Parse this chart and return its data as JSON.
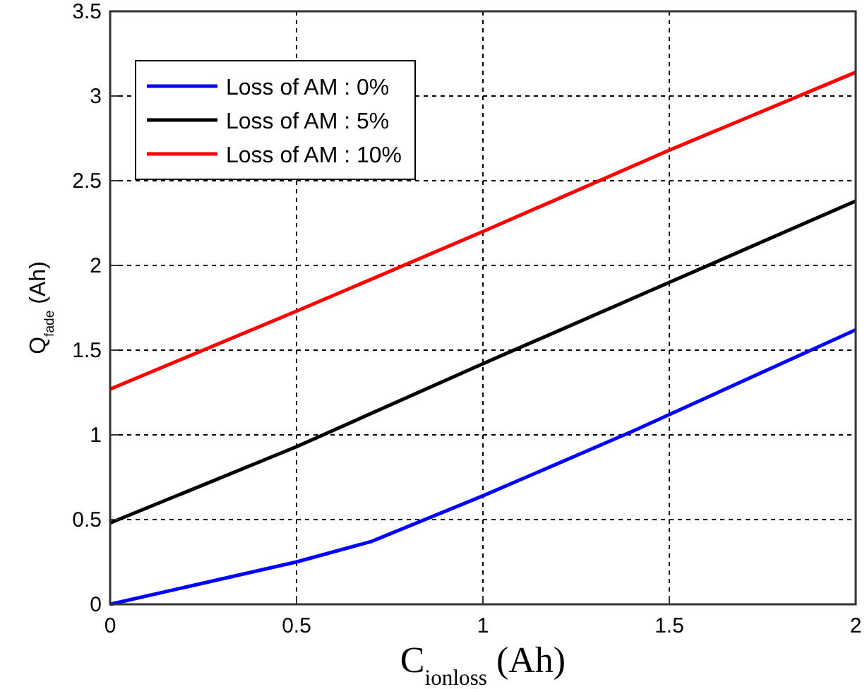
{
  "chart_data": {
    "type": "line",
    "xlabel": "C$_{ionloss}$ (Ah)",
    "ylabel": "Q$_{fade}$ (Ah)",
    "xlim": [
      0,
      2
    ],
    "xticks": [
      0,
      0.5,
      1,
      1.5,
      2
    ],
    "ylim": [
      0,
      3.5
    ],
    "yticks": [
      0,
      0.5,
      1,
      1.5,
      2,
      2.5,
      3,
      3.5
    ],
    "grid": true,
    "legend": "top left",
    "line_style": "solid",
    "series": [
      {
        "name": "Loss of AM : 0%",
        "color": "#0000ff",
        "x": [
          0,
          0.2,
          0.5,
          0.7,
          1,
          1.4,
          1.5,
          2
        ],
        "values": [
          0,
          0.1,
          0.25,
          0.37,
          0.64,
          1.02,
          1.12,
          1.62
        ]
      },
      {
        "name": "Loss of AM : 5%",
        "color": "#000000",
        "x": [
          0,
          0.5,
          1,
          1.5,
          2
        ],
        "values": [
          0.48,
          0.93,
          1.42,
          1.9,
          2.38
        ]
      },
      {
        "name": "Loss of AM : 10%",
        "color": "#ff0000",
        "x": [
          0,
          0.5,
          1,
          1.5,
          2
        ],
        "values": [
          1.27,
          1.73,
          2.2,
          2.68,
          3.14
        ]
      }
    ]
  }
}
